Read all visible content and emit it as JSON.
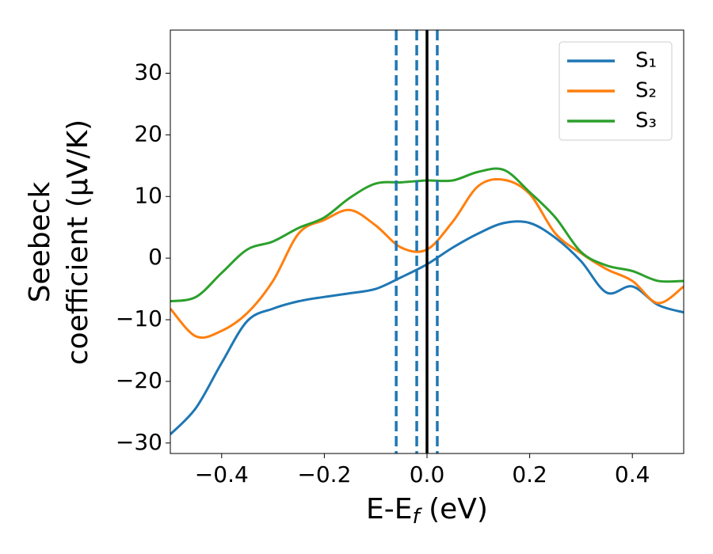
{
  "chart_data": {
    "type": "line",
    "xlabel": [
      "E-E",
      "f",
      " (eV)"
    ],
    "ylabel": [
      "Seebeck",
      "coefficient  (μV/K)"
    ],
    "x": [
      -0.5,
      -0.45,
      -0.4,
      -0.35,
      -0.3,
      -0.25,
      -0.2,
      -0.15,
      -0.1,
      -0.05,
      0,
      0.05,
      0.1,
      0.15,
      0.2,
      0.25,
      0.3,
      0.35,
      0.4,
      0.45,
      0.5
    ],
    "series": [
      {
        "name": "S₁",
        "color": "#1f77b4",
        "values": [
          -28.6,
          -24.3,
          -17,
          -10.2,
          -8.2,
          -7,
          -6.3,
          -5.7,
          -5.0,
          -3.1,
          -1.0,
          1.7,
          4.0,
          5.7,
          5.7,
          3.3,
          -0.5,
          -5.6,
          -4.6,
          -7.6,
          -8.8
        ]
      },
      {
        "name": "S₂",
        "color": "#ff7f0e",
        "values": [
          -8.2,
          -12.7,
          -11.8,
          -8.9,
          -3.7,
          4.0,
          6.2,
          7.8,
          5.3,
          1.7,
          1.4,
          5.9,
          11.7,
          12.7,
          10.4,
          4.0,
          0.8,
          -1.8,
          -3.7,
          -7.3,
          -4.6
        ]
      },
      {
        "name": "S₃",
        "color": "#2ca02c",
        "values": [
          -7,
          -6.3,
          -2.4,
          1.4,
          2.7,
          4.9,
          6.6,
          9.8,
          12.1,
          12.3,
          12.6,
          12.6,
          14.0,
          14.3,
          10.7,
          6.6,
          1.0,
          -1.2,
          -2.1,
          -3.7,
          -3.7
        ]
      }
    ],
    "vlines": [
      {
        "x": -0.06,
        "color": "#1f77b4",
        "style": "dashed"
      },
      {
        "x": -0.02,
        "color": "#1f77b4",
        "style": "dashed"
      },
      {
        "x": 0.02,
        "color": "#1f77b4",
        "style": "dashed"
      },
      {
        "x": 0,
        "color": "#000000",
        "style": "solid"
      }
    ],
    "xlim": [
      -0.5,
      0.5
    ],
    "ylim": [
      -31.7,
      37
    ],
    "xticks": [
      {
        "value": -0.4,
        "label": "−0.4"
      },
      {
        "value": -0.2,
        "label": "−0.2"
      },
      {
        "value": 0,
        "label": "0.0"
      },
      {
        "value": 0.2,
        "label": "0.2"
      },
      {
        "value": 0.4,
        "label": "0.4"
      }
    ],
    "yticks": [
      {
        "value": -30,
        "label": "−30"
      },
      {
        "value": -20,
        "label": "−20"
      },
      {
        "value": -10,
        "label": "−10"
      },
      0,
      10,
      20,
      30
    ],
    "grid": false,
    "legend": "upper right"
  }
}
